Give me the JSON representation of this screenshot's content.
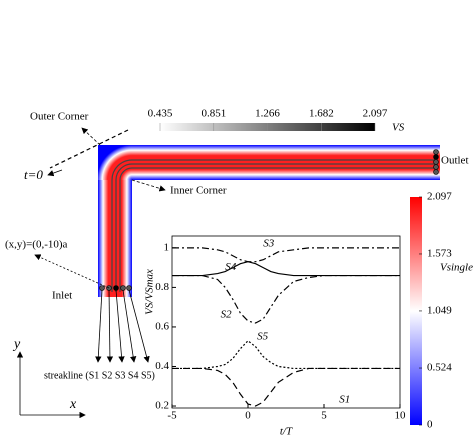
{
  "diagram": {
    "outer_corner": "Outer Corner",
    "t0": "t=0",
    "inner_corner": "Inner Corner",
    "outlet": "Outlet",
    "position": "(x,y)=(0,-10)a",
    "inlet": "Inlet",
    "streakline": "streakline (S1 S2 S3 S4 S5)",
    "y_axis": "y",
    "x_axis": "x"
  },
  "colorbars": [
    {
      "label": "VS",
      "ticks": [
        0.435,
        0.851,
        1.266,
        1.682,
        2.097
      ],
      "colors": [
        "#ffffff",
        "#000000"
      ]
    },
    {
      "label": "Vsingle",
      "ticks": [
        0,
        0.524,
        1.049,
        1.573,
        2.097
      ],
      "colors": [
        "#0000ff",
        "#ffffff",
        "#ff0000"
      ]
    }
  ],
  "chart_data": {
    "type": "line",
    "xlabel": "t/T",
    "ylabel": "VS/VSmax",
    "x": [
      -5,
      -4,
      -3,
      -2,
      -1.5,
      -1,
      -0.5,
      0,
      0.5,
      1,
      1.5,
      2,
      3,
      4,
      5,
      6,
      8,
      10
    ],
    "series": [
      {
        "name": "S1",
        "color": "#000000",
        "style": "dashed",
        "values": [
          0.39,
          0.39,
          0.39,
          0.38,
          0.36,
          0.32,
          0.26,
          0.21,
          0.2,
          0.22,
          0.27,
          0.32,
          0.37,
          0.39,
          0.39,
          0.39,
          0.39,
          0.39
        ]
      },
      {
        "name": "S2",
        "color": "#000000",
        "style": "dashdot",
        "values": [
          0.86,
          0.86,
          0.86,
          0.84,
          0.8,
          0.74,
          0.67,
          0.63,
          0.62,
          0.64,
          0.7,
          0.76,
          0.83,
          0.85,
          0.86,
          0.86,
          0.86,
          0.86
        ]
      },
      {
        "name": "S3",
        "color": "#000000",
        "style": "dashdot",
        "values": [
          1,
          1,
          1,
          0.99,
          0.98,
          0.96,
          0.94,
          0.93,
          0.93,
          0.94,
          0.96,
          0.98,
          0.99,
          1,
          1,
          1,
          1,
          1
        ]
      },
      {
        "name": "S4",
        "color": "#000000",
        "style": "solid",
        "values": [
          0.86,
          0.86,
          0.86,
          0.87,
          0.88,
          0.9,
          0.92,
          0.93,
          0.92,
          0.9,
          0.88,
          0.87,
          0.86,
          0.86,
          0.86,
          0.86,
          0.86,
          0.86
        ]
      },
      {
        "name": "S5",
        "color": "#000000",
        "style": "dotted",
        "values": [
          0.39,
          0.39,
          0.39,
          0.4,
          0.41,
          0.44,
          0.49,
          0.53,
          0.5,
          0.45,
          0.42,
          0.4,
          0.39,
          0.39,
          0.39,
          0.39,
          0.39,
          0.39
        ]
      }
    ],
    "xlim": [
      -5,
      10
    ],
    "ylim": [
      0.19,
      1.06
    ],
    "xticks": [
      -5,
      0,
      5,
      10
    ],
    "yticks": [
      0.2,
      0.4,
      0.6,
      0.8,
      1
    ]
  }
}
